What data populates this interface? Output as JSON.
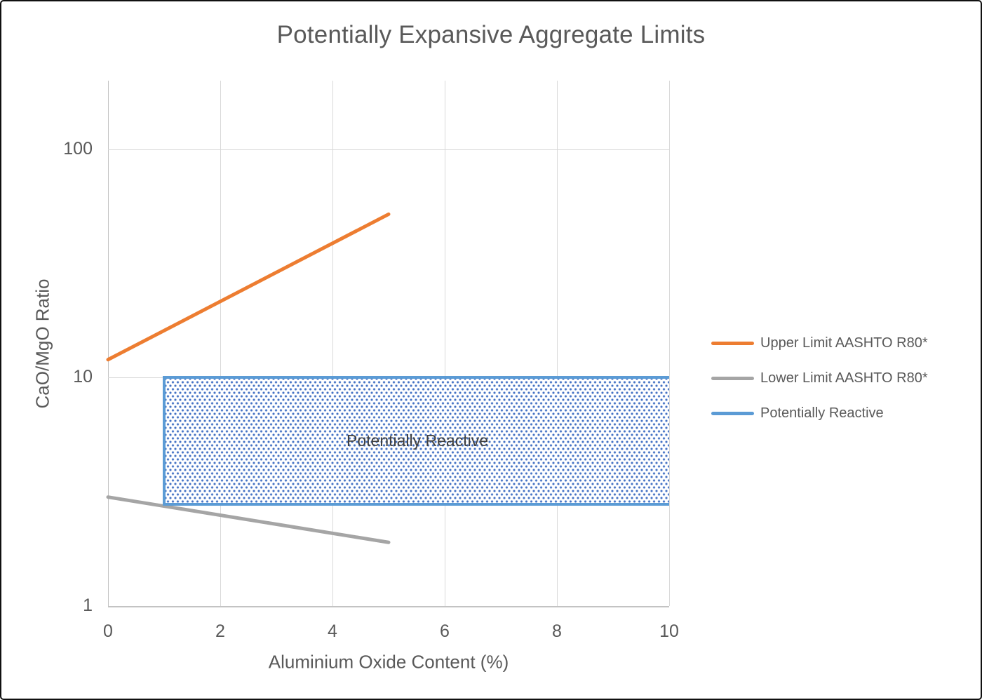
{
  "title": "Potentially Expansive Aggregate Limits",
  "x_axis": {
    "title": "Aluminium Oxide Content (%)",
    "ticks": [
      "0",
      "2",
      "4",
      "6",
      "8",
      "10"
    ]
  },
  "y_axis": {
    "title": "CaO/MgO Ratio",
    "ticks": [
      "1",
      "10",
      "100"
    ]
  },
  "region_label": "Potentially Reactive",
  "legend": [
    {
      "label": "Upper Limit AASHTO R80*",
      "color": "#ED7D31"
    },
    {
      "label": "Lower Limit AASHTO R80*",
      "color": "#A5A5A5"
    },
    {
      "label": "Potentially Reactive",
      "color": "#5B9BD5"
    }
  ],
  "colors": {
    "upper_line": "#ED7D31",
    "lower_line": "#A5A5A5",
    "region_border": "#5B9BD5",
    "region_dots": "#4472C4",
    "text": "#595959",
    "gridline": "#D9D9D9"
  },
  "chart_data": {
    "type": "line",
    "title": "Potentially Expansive Aggregate Limits",
    "xlabel": "Aluminium Oxide Content (%)",
    "ylabel": "CaO/MgO Ratio",
    "x_scale": "linear",
    "y_scale": "log",
    "xlim": [
      0,
      10
    ],
    "ylim": [
      1,
      200
    ],
    "x_ticks": [
      0,
      2,
      4,
      6,
      8,
      10
    ],
    "y_ticks": [
      1,
      10,
      100
    ],
    "grid": true,
    "legend_position": "right",
    "series": [
      {
        "name": "Upper Limit AASHTO R80*",
        "color": "#ED7D31",
        "points": [
          [
            0,
            12
          ],
          [
            5,
            52
          ]
        ]
      },
      {
        "name": "Lower Limit AASHTO R80*",
        "color": "#A5A5A5",
        "points": [
          [
            0,
            3
          ],
          [
            5,
            1.9
          ]
        ]
      },
      {
        "name": "Potentially Reactive",
        "color": "#5B9BD5",
        "type": "region",
        "x_range": [
          1,
          10
        ],
        "y_range": [
          2.8,
          10
        ],
        "fill": "blue dotted pattern",
        "label": "Potentially Reactive"
      }
    ]
  }
}
